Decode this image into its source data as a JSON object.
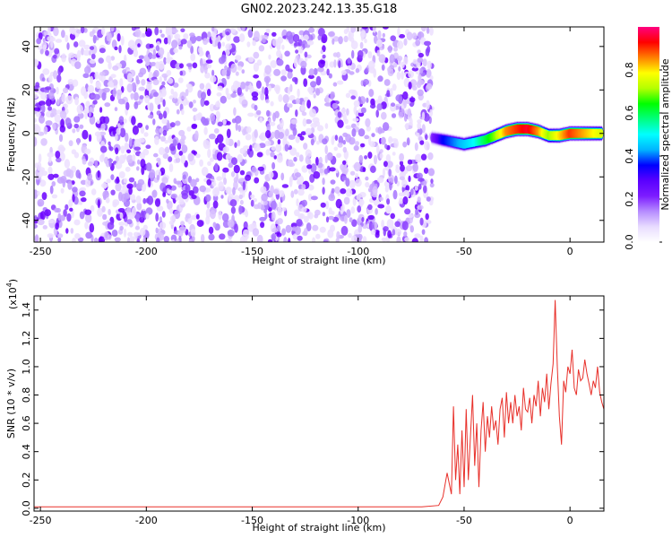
{
  "title": "GN02.2023.242.13.35.G18",
  "chart_data": [
    {
      "type": "heatmap",
      "xlabel": "Height of straight line (km)",
      "ylabel": "Frequency (Hz)",
      "xlim": [
        -253,
        16
      ],
      "ylim": [
        -50,
        49
      ],
      "xticks": [
        -250,
        -200,
        -150,
        -100,
        -50,
        0
      ],
      "yticks": [
        -40,
        -20,
        0,
        20,
        40
      ],
      "colorbar": {
        "label": "Normalized spectral amplitude",
        "range": [
          0.0,
          1.0
        ],
        "ticks": [
          0.0,
          0.2,
          0.4,
          0.6,
          0.8
        ],
        "colormap": [
          "#ffffff",
          "#e8dcff",
          "#b68cff",
          "#7c1cff",
          "#5a00ff",
          "#0000ff",
          "#00b4ff",
          "#00ffff",
          "#00ff80",
          "#00ff00",
          "#b4ff00",
          "#ffff00",
          "#ff8000",
          "#ff0000",
          "#ff0080"
        ]
      },
      "noise_region": {
        "x_range": [
          -253,
          -65
        ],
        "y_range": [
          -50,
          49
        ]
      },
      "signal_ridge": {
        "x": [
          -65,
          -60,
          -55,
          -50,
          -45,
          -40,
          -35,
          -30,
          -25,
          -20,
          -15,
          -10,
          -5,
          0,
          5,
          10,
          15
        ],
        "frequency": [
          -2,
          -3,
          -4,
          -5,
          -4,
          -3,
          -1,
          1,
          2,
          2,
          1,
          -1,
          -1,
          0,
          0,
          0,
          0
        ],
        "amplitude": [
          0.2,
          0.35,
          0.4,
          0.45,
          0.5,
          0.6,
          0.7,
          0.85,
          0.9,
          0.95,
          0.85,
          0.7,
          0.8,
          0.9,
          0.85,
          0.8,
          0.75
        ]
      }
    },
    {
      "type": "line",
      "xlabel": "Height of straight line (km)",
      "ylabel": "SNR (10 * v/v)",
      "yscale_label": "(x10",
      "yscale_exponent": "4",
      "xlim": [
        -253,
        16
      ],
      "ylim": [
        -0.02,
        1.5
      ],
      "xticks": [
        -250,
        -200,
        -150,
        -100,
        -50,
        0
      ],
      "yticks": [
        0.0,
        0.2,
        0.4,
        0.6,
        0.8,
        1.0,
        1.2,
        1.4
      ],
      "color": "#e8302a",
      "x": [
        -253,
        -240,
        -220,
        -200,
        -180,
        -160,
        -140,
        -120,
        -100,
        -90,
        -80,
        -70,
        -62,
        -60,
        -58,
        -56,
        -55,
        -54,
        -53,
        -52,
        -51,
        -50,
        -49,
        -48,
        -47,
        -46,
        -45,
        -44,
        -43,
        -42,
        -41,
        -40,
        -39,
        -38,
        -37,
        -36,
        -35,
        -34,
        -33,
        -32,
        -31,
        -30,
        -29,
        -28,
        -27,
        -26,
        -25,
        -24,
        -23,
        -22,
        -21,
        -20,
        -19,
        -18,
        -17,
        -16,
        -15,
        -14,
        -13,
        -12,
        -11,
        -10,
        -9,
        -8,
        -7,
        -6,
        -5,
        -4,
        -3,
        -2,
        -1,
        0,
        1,
        2,
        3,
        4,
        5,
        6,
        7,
        8,
        9,
        10,
        11,
        12,
        13,
        14,
        15,
        16
      ],
      "y": [
        0.01,
        0.01,
        0.01,
        0.01,
        0.01,
        0.01,
        0.01,
        0.01,
        0.01,
        0.01,
        0.01,
        0.01,
        0.02,
        0.08,
        0.25,
        0.1,
        0.72,
        0.2,
        0.45,
        0.1,
        0.55,
        0.15,
        0.7,
        0.2,
        0.5,
        0.8,
        0.3,
        0.6,
        0.15,
        0.55,
        0.75,
        0.4,
        0.65,
        0.5,
        0.72,
        0.55,
        0.62,
        0.45,
        0.7,
        0.78,
        0.5,
        0.82,
        0.6,
        0.75,
        0.6,
        0.8,
        0.65,
        0.72,
        0.55,
        0.85,
        0.7,
        0.68,
        0.78,
        0.6,
        0.8,
        0.72,
        0.9,
        0.65,
        0.85,
        0.75,
        0.95,
        0.7,
        0.88,
        1.02,
        1.47,
        1.0,
        0.65,
        0.45,
        0.9,
        0.82,
        1.0,
        0.95,
        1.12,
        0.85,
        0.8,
        0.98,
        0.9,
        0.92,
        1.05,
        0.95,
        0.88,
        0.8,
        0.9,
        0.85,
        1.0,
        0.82,
        0.75,
        0.7
      ]
    }
  ]
}
